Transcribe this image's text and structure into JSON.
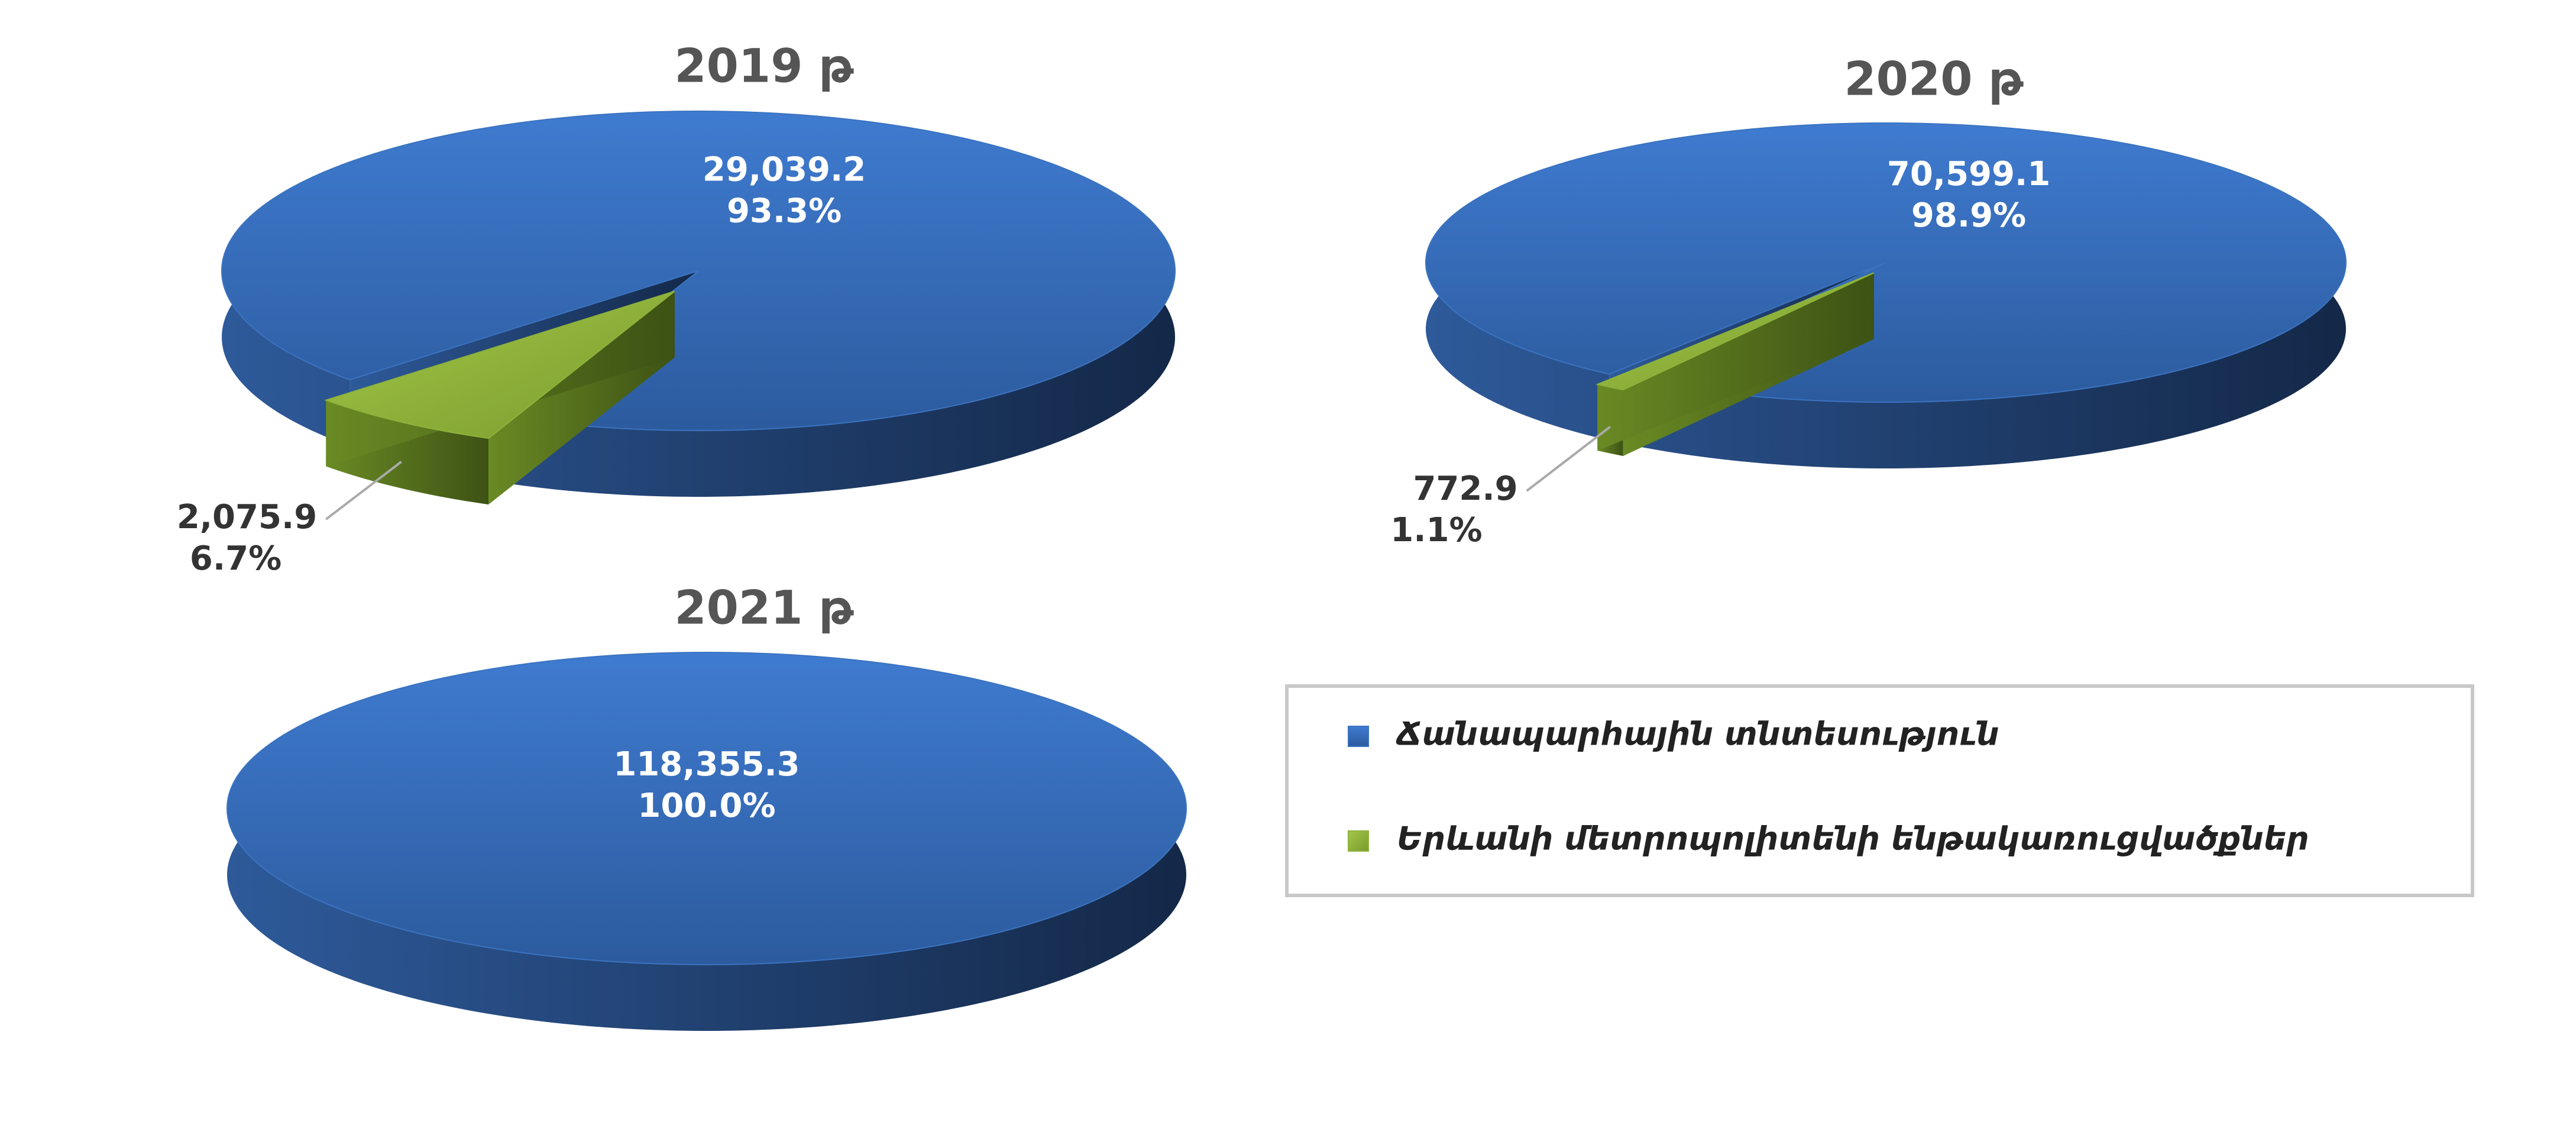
{
  "chart_data": [
    {
      "type": "pie",
      "title": "2019 թ",
      "categories": [
        "Ճանապարհային տնտեսություն",
        "Երևանի մետրոպոլիտենի ենթակառուցվածքներ"
      ],
      "colors": [
        "#3b73c0",
        "#8db33a"
      ],
      "values": [
        29039.2,
        2075.9
      ],
      "value_labels": [
        "29,039.2",
        "2,075.9"
      ],
      "percentages": [
        93.3,
        6.7
      ],
      "percentage_labels": [
        "93.3%",
        "6.7%"
      ]
    },
    {
      "type": "pie",
      "title": "2020 թ",
      "values": [
        70599.1,
        772.9
      ],
      "value_labels": [
        "70,599.1",
        "772.9"
      ],
      "percentages": [
        98.9,
        1.1
      ],
      "percentage_labels": [
        "98.9%",
        "1.1%"
      ]
    },
    {
      "type": "pie",
      "title": "2021 թ",
      "values": [
        118355.3
      ],
      "value_labels": [
        "118,355.3"
      ],
      "percentages": [
        100.0
      ],
      "percentage_labels": [
        "100.0%"
      ]
    }
  ]
}
